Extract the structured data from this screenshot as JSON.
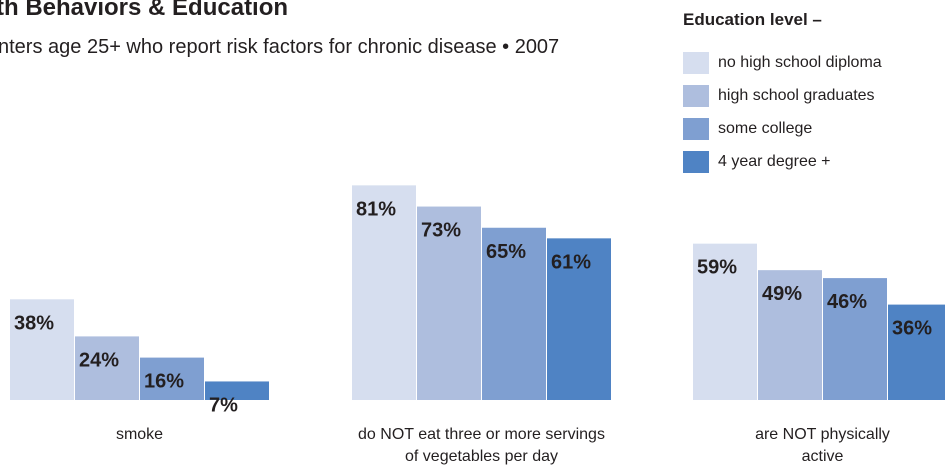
{
  "colors": {
    "edu_0": "#d6deef",
    "edu_1": "#aebede",
    "edu_2": "#7f9fd1",
    "edu_3": "#4f83c4"
  },
  "header": {
    "title": "th Behaviors & Education",
    "subtitle": "nters age 25+ who report risk factors for chronic disease  • 2007"
  },
  "legend": {
    "title": "Education level –",
    "items": [
      {
        "label": "no high school diploma",
        "color": "#d6deef"
      },
      {
        "label": "high school graduates",
        "color": "#aebede"
      },
      {
        "label": "some college",
        "color": "#7f9fd1"
      },
      {
        "label": "4 year degree +",
        "color": "#4f83c4"
      }
    ]
  },
  "chart_data": {
    "type": "bar",
    "title": "th Behaviors & Education",
    "subtitle": "nters age 25+ who report risk factors for chronic disease  • 2007",
    "categories": [
      [
        "smoke"
      ],
      [
        "do NOT eat three or more servings",
        "of vegetables per day"
      ],
      [
        "are NOT physically",
        "active"
      ]
    ],
    "series": [
      {
        "name": "no high school diploma",
        "values": [
          38,
          81,
          59
        ],
        "labels": [
          "38%",
          "81%",
          "59%"
        ]
      },
      {
        "name": "high school graduates",
        "values": [
          24,
          73,
          49
        ],
        "labels": [
          "24%",
          "73%",
          "49%"
        ]
      },
      {
        "name": "some college",
        "values": [
          16,
          65,
          46
        ],
        "labels": [
          "16%",
          "65%",
          "46%"
        ]
      },
      {
        "name": "4 year degree +",
        "values": [
          7,
          61,
          36
        ],
        "labels": [
          "7%",
          "61%",
          "36%"
        ]
      }
    ],
    "ylim": [
      0,
      100
    ],
    "unit": "%",
    "grid": false,
    "legend_position": "top-right"
  }
}
